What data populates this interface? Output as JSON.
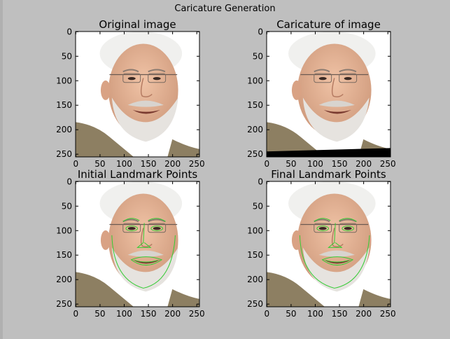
{
  "figure": {
    "title": "Caricature Generation"
  },
  "panels": [
    {
      "id": "original",
      "title": "Original image",
      "variant": "original",
      "landmarks": false
    },
    {
      "id": "caricature",
      "title": "Caricature of image",
      "variant": "caricature",
      "landmarks": false
    },
    {
      "id": "initial-landmarks",
      "title": "Initial Landmark Points",
      "variant": "original",
      "landmarks": true,
      "landmark_set": "initial"
    },
    {
      "id": "final-landmarks",
      "title": "Final Landmark Points",
      "variant": "caricature",
      "landmarks": true,
      "landmark_set": "final"
    }
  ],
  "axes": {
    "x_ticks": [
      "0",
      "50",
      "100",
      "150",
      "200",
      "250"
    ],
    "y_ticks": [
      "0",
      "50",
      "100",
      "150",
      "200",
      "250"
    ]
  },
  "colors": {
    "background": "#bfbfbf",
    "landmark": "#33cc33",
    "skin": "#e7b496",
    "hair": "#f0f0ee",
    "beard": "#e6e3df",
    "jacket": "#8d7f62"
  }
}
